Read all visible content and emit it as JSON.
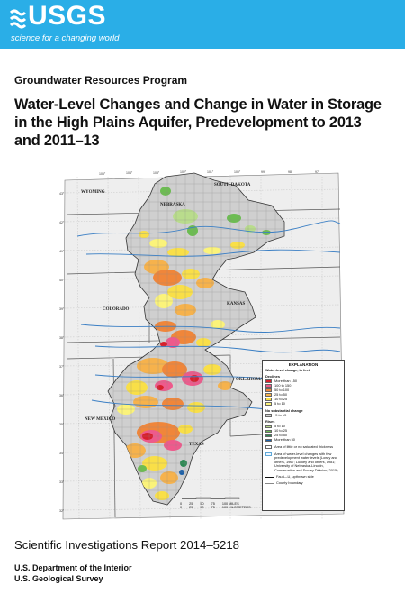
{
  "banner": {
    "logo_text": "USGS",
    "tagline": "science for a changing world",
    "color": "#2aaee7"
  },
  "program": "Groundwater Resources Program",
  "title": "Water-Level Changes and Change in Water in Storage in the High Plains Aquifer, Predevelopment to 2013 and 2011–13",
  "map": {
    "states": [
      "WYOMING",
      "SOUTH DAKOTA",
      "NEBRASKA",
      "COLORADO",
      "KANSAS",
      "OKLAHOMA",
      "NEW MEXICO",
      "TEXAS"
    ],
    "longitudes": [
      "105°",
      "104°",
      "103°",
      "102°",
      "101°",
      "100°",
      "99°",
      "98°",
      "97°"
    ],
    "latitudes": [
      "43°",
      "42°",
      "41°",
      "40°",
      "39°",
      "38°",
      "37°",
      "36°",
      "35°",
      "34°",
      "33°",
      "32°"
    ]
  },
  "legend": {
    "title": "EXPLANATION",
    "subtitle": "Water-level change, in feet",
    "declines_header": "Declines",
    "declines": [
      {
        "label": "More than 150",
        "color": "#d7202c"
      },
      {
        "label": "100 to 150",
        "color": "#ee5a8c"
      },
      {
        "label": "50 to 100",
        "color": "#f0863a"
      },
      {
        "label": "25 to 50",
        "color": "#f6b24c"
      },
      {
        "label": "10 to 25",
        "color": "#f9df48"
      },
      {
        "label": "5 to 10",
        "color": "#fbf37a"
      }
    ],
    "no_change_header": "No substantial change",
    "no_change": {
      "label": "-5 to +5",
      "color": "#d2d2d2"
    },
    "rises_header": "Rises",
    "rises": [
      {
        "label": "5 to 10",
        "color": "#b9dc8c"
      },
      {
        "label": "10 to 25",
        "color": "#6cbc52"
      },
      {
        "label": "25 to 50",
        "color": "#2c8a54"
      },
      {
        "label": "More than 50",
        "color": "#1a5fa8"
      }
    ],
    "area_little": "Area of little or no saturated thickness",
    "area_few": "Area of water-level changes with few predevelopment water levels (Lowry and others, 1967; Luckey and others, 1981; University of Nebraska–Lincoln, Conservation and Survey Division, 2015)",
    "fault": "Fault—U, upthrown side",
    "county": "County boundary"
  },
  "scale": {
    "miles": [
      "0",
      "25",
      "50",
      "75",
      "100 MILES"
    ],
    "km": [
      "0",
      "25",
      "50",
      "75",
      "100 KILOMETERS"
    ]
  },
  "series": "Scientific Investigations Report 2014–5218",
  "dept_1": "U.S. Department of the Interior",
  "dept_2": "U.S. Geological Survey"
}
